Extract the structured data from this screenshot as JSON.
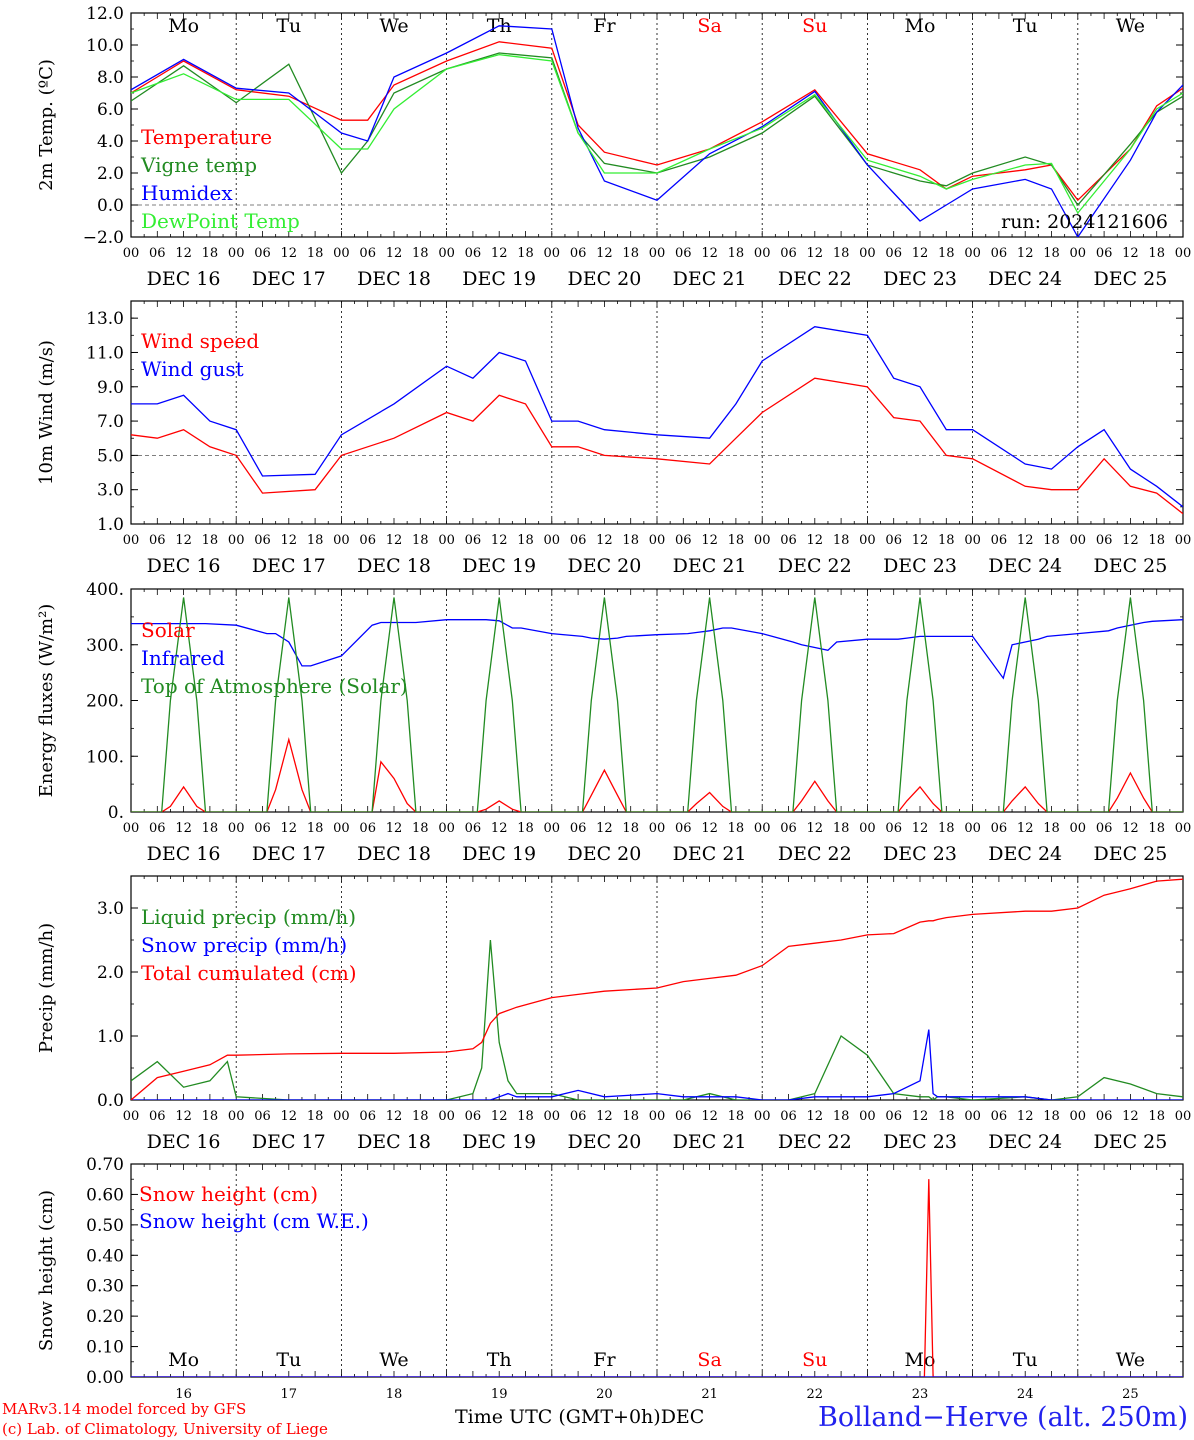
{
  "colors": {
    "red": "#ff0000",
    "green": "#228b22",
    "blue": "#0000ff",
    "lightgreen": "#33ee33",
    "black": "#000000"
  },
  "footer": {
    "model": "MARv3.14 model forced by GFS",
    "lab": "(c) Lab. of Climatology, University of Liege",
    "time_label": "Time UTC (GMT+0h)",
    "month": "DEC",
    "station": "Bolland−Herve (alt. 250m)"
  },
  "days": [
    {
      "dow": "Mo",
      "date": "DEC 16",
      "num": "16",
      "weekend": false
    },
    {
      "dow": "Tu",
      "date": "DEC 17",
      "num": "17",
      "weekend": false
    },
    {
      "dow": "We",
      "date": "DEC 18",
      "num": "18",
      "weekend": false
    },
    {
      "dow": "Th",
      "date": "DEC 19",
      "num": "19",
      "weekend": false
    },
    {
      "dow": "Fr",
      "date": "DEC 20",
      "num": "20",
      "weekend": false
    },
    {
      "dow": "Sa",
      "date": "DEC 21",
      "num": "21",
      "weekend": true
    },
    {
      "dow": "Su",
      "date": "DEC 22",
      "num": "22",
      "weekend": true
    },
    {
      "dow": "Mo",
      "date": "DEC 23",
      "num": "23",
      "weekend": false
    },
    {
      "dow": "Tu",
      "date": "DEC 24",
      "num": "24",
      "weekend": false
    },
    {
      "dow": "We",
      "date": "DEC 25",
      "num": "25",
      "weekend": false
    }
  ],
  "hour_ticks": [
    "00",
    "06",
    "12",
    "18"
  ],
  "chart_data": [
    {
      "type": "line",
      "id": "temp",
      "ylabel": "2m Temp. (ºC)",
      "ylim": [
        -2,
        12
      ],
      "yticks": [
        "−2.0",
        "0.0",
        "2.0",
        "4.0",
        "6.0",
        "8.0",
        "10.0",
        "12.0"
      ],
      "ytick_values": [
        -2,
        0,
        2,
        4,
        6,
        8,
        10,
        12
      ],
      "dashed_ref": 0,
      "annotation": "run: 2024121606",
      "x": [
        0,
        12,
        24,
        36,
        48,
        54,
        60,
        72,
        84,
        96,
        102,
        108,
        120,
        132,
        144,
        156,
        168,
        180,
        186,
        192,
        204,
        210,
        216,
        228,
        234,
        240
      ],
      "series": [
        {
          "name": "Temperature",
          "color": "red",
          "values": [
            7.0,
            9.0,
            7.2,
            6.8,
            5.3,
            5.3,
            7.5,
            9.0,
            10.2,
            9.8,
            5.0,
            3.3,
            2.5,
            3.5,
            5.2,
            7.2,
            3.2,
            2.2,
            1.0,
            1.8,
            2.2,
            2.5,
            0.3,
            3.5,
            6.2,
            7.3
          ]
        },
        {
          "name": "Vigne temp",
          "color": "green",
          "values": [
            6.5,
            8.7,
            6.4,
            8.8,
            2.0,
            4.0,
            7.0,
            8.5,
            9.5,
            9.2,
            4.5,
            2.6,
            2.0,
            3.0,
            4.5,
            6.8,
            2.5,
            1.5,
            1.2,
            2.0,
            3.0,
            2.5,
            0.0,
            3.8,
            5.8,
            6.8
          ]
        },
        {
          "name": "Humidex",
          "color": "blue",
          "values": [
            7.2,
            9.1,
            7.3,
            7.0,
            4.5,
            4.0,
            8.0,
            9.5,
            11.2,
            11.0,
            4.8,
            1.5,
            0.3,
            3.2,
            4.9,
            7.1,
            2.5,
            -1.0,
            0.0,
            1.0,
            1.6,
            1.0,
            -2.0,
            2.8,
            5.8,
            7.5
          ]
        },
        {
          "name": "DewPoint Temp",
          "color": "lightgreen",
          "values": [
            7.0,
            8.2,
            6.6,
            6.6,
            3.5,
            3.5,
            6.0,
            8.5,
            9.4,
            9.0,
            4.5,
            2.0,
            2.0,
            3.5,
            4.8,
            6.9,
            2.8,
            1.8,
            1.0,
            1.6,
            2.5,
            2.6,
            -0.5,
            3.5,
            6.0,
            7.0
          ]
        }
      ]
    },
    {
      "type": "line",
      "id": "wind",
      "ylabel": "10m Wind (m/s)",
      "ylim": [
        1,
        14
      ],
      "yticks": [
        "1.0",
        "3.0",
        "5.0",
        "7.0",
        "9.0",
        "11.0",
        "13.0"
      ],
      "ytick_values": [
        1,
        3,
        5,
        7,
        9,
        11,
        13
      ],
      "dashed_ref": 5,
      "x": [
        0,
        6,
        12,
        18,
        24,
        30,
        42,
        48,
        60,
        72,
        78,
        84,
        90,
        96,
        102,
        108,
        120,
        132,
        138,
        144,
        156,
        168,
        174,
        180,
        186,
        192,
        204,
        210,
        216,
        222,
        228,
        234,
        240
      ],
      "series": [
        {
          "name": "Wind speed",
          "color": "red",
          "values": [
            6.2,
            6.0,
            6.5,
            5.5,
            5.0,
            2.8,
            3.0,
            5.0,
            6.0,
            7.5,
            7.0,
            8.5,
            8.0,
            5.5,
            5.5,
            5.0,
            4.8,
            4.5,
            6.0,
            7.5,
            9.5,
            9.0,
            7.2,
            7.0,
            5.0,
            4.8,
            3.2,
            3.0,
            3.0,
            4.8,
            3.2,
            2.8,
            1.6
          ]
        },
        {
          "name": "Wind gust",
          "color": "blue",
          "values": [
            8.0,
            8.0,
            8.5,
            7.0,
            6.5,
            3.8,
            3.9,
            6.2,
            8.0,
            10.2,
            9.5,
            11.0,
            10.5,
            7.0,
            7.0,
            6.5,
            6.2,
            6.0,
            8.0,
            10.5,
            12.5,
            12.0,
            9.5,
            9.0,
            6.5,
            6.5,
            4.5,
            4.2,
            5.5,
            6.5,
            4.2,
            3.2,
            2.0
          ]
        }
      ]
    },
    {
      "type": "line",
      "id": "energy",
      "ylabel": "Energy fluxes (W/m²)",
      "ylim": [
        0,
        400
      ],
      "yticks": [
        "0.",
        "100.",
        "200.",
        "300.",
        "400."
      ],
      "ytick_values": [
        0,
        100,
        200,
        300,
        400
      ],
      "x": [
        0,
        7,
        9,
        12,
        15,
        17,
        24,
        31,
        33,
        36,
        39,
        41,
        48,
        55,
        57,
        60,
        63,
        65,
        72,
        79,
        81,
        84,
        87,
        89,
        96,
        103,
        105,
        108,
        111,
        113,
        120,
        127,
        129,
        132,
        135,
        137,
        144,
        151,
        153,
        156,
        159,
        161,
        168,
        175,
        177,
        180,
        183,
        185,
        192,
        199,
        201,
        204,
        207,
        209,
        216,
        223,
        225,
        228,
        231,
        233,
        240
      ],
      "series": [
        {
          "name": "Solar",
          "color": "red",
          "values": [
            0,
            0,
            10,
            45,
            10,
            0,
            0,
            0,
            40,
            130,
            40,
            0,
            0,
            0,
            90,
            60,
            15,
            0,
            0,
            0,
            5,
            20,
            5,
            0,
            0,
            0,
            30,
            75,
            30,
            0,
            0,
            0,
            15,
            35,
            10,
            0,
            0,
            0,
            20,
            55,
            20,
            0,
            0,
            0,
            20,
            45,
            15,
            0,
            0,
            0,
            20,
            45,
            15,
            0,
            0,
            0,
            25,
            70,
            25,
            0,
            0
          ]
        },
        {
          "name": "Infrared",
          "color": "blue",
          "values": [
            338,
            338,
            338,
            338,
            338,
            338,
            335,
            320,
            320,
            305,
            262,
            262,
            280,
            335,
            340,
            340,
            340,
            340,
            345,
            345,
            345,
            343,
            330,
            330,
            320,
            315,
            312,
            310,
            312,
            315,
            318,
            320,
            322,
            325,
            330,
            330,
            320,
            305,
            300,
            295,
            290,
            305,
            310,
            310,
            312,
            315,
            315,
            315,
            315,
            240,
            300,
            305,
            310,
            315,
            320,
            325,
            330,
            335,
            340,
            342,
            345
          ]
        },
        {
          "name": "Top of Atmosphere (Solar)",
          "color": "green",
          "values": [
            0,
            0,
            200,
            385,
            200,
            0,
            0,
            0,
            200,
            385,
            200,
            0,
            0,
            0,
            200,
            385,
            200,
            0,
            0,
            0,
            200,
            385,
            200,
            0,
            0,
            0,
            200,
            385,
            200,
            0,
            0,
            0,
            200,
            385,
            200,
            0,
            0,
            0,
            200,
            385,
            200,
            0,
            0,
            0,
            200,
            385,
            200,
            0,
            0,
            0,
            200,
            385,
            200,
            0,
            0,
            0,
            200,
            385,
            200,
            0,
            0
          ]
        }
      ]
    },
    {
      "type": "line",
      "id": "precip",
      "ylabel": "Precip (mm/h)",
      "ylim": [
        0,
        3.5
      ],
      "yticks": [
        "0.0",
        "1.0",
        "2.0",
        "3.0"
      ],
      "ytick_values": [
        0,
        1,
        2,
        3
      ],
      "x": [
        0,
        6,
        12,
        18,
        22,
        24,
        36,
        48,
        60,
        72,
        78,
        80,
        82,
        84,
        86,
        88,
        96,
        102,
        108,
        120,
        126,
        132,
        138,
        144,
        150,
        156,
        162,
        168,
        174,
        180,
        182,
        183,
        184,
        186,
        192,
        204,
        210,
        216,
        222,
        228,
        234,
        240
      ],
      "series": [
        {
          "name": "Liquid precip (mm/h)",
          "color": "green",
          "values": [
            0.3,
            0.6,
            0.2,
            0.3,
            0.6,
            0.05,
            0.0,
            0.0,
            0.0,
            0.0,
            0.1,
            0.5,
            2.5,
            0.9,
            0.3,
            0.1,
            0.1,
            0.0,
            0.0,
            0.0,
            0.0,
            0.1,
            0.0,
            0.0,
            0.0,
            0.1,
            1.0,
            0.7,
            0.1,
            0.05,
            0.05,
            0.0,
            0.05,
            0.05,
            0.0,
            0.05,
            0.0,
            0.05,
            0.35,
            0.25,
            0.1,
            0.05
          ]
        },
        {
          "name": "Snow precip (mm/h)",
          "color": "blue",
          "values": [
            0.0,
            0.0,
            0.0,
            0.0,
            0.0,
            0.0,
            0.0,
            0.0,
            0.0,
            0.0,
            0.0,
            0.0,
            0.0,
            0.05,
            0.1,
            0.05,
            0.05,
            0.15,
            0.05,
            0.1,
            0.05,
            0.05,
            0.05,
            0.0,
            0.0,
            0.05,
            0.05,
            0.05,
            0.1,
            0.3,
            1.1,
            0.1,
            0.05,
            0.05,
            0.05,
            0.05,
            0.0,
            0.0,
            0.0,
            0.0,
            0.0,
            0.0
          ]
        },
        {
          "name": "Total cumulated (cm)",
          "color": "red",
          "values": [
            0.0,
            0.35,
            0.45,
            0.55,
            0.7,
            0.7,
            0.72,
            0.73,
            0.73,
            0.75,
            0.8,
            0.9,
            1.2,
            1.35,
            1.4,
            1.45,
            1.6,
            1.65,
            1.7,
            1.75,
            1.85,
            1.9,
            1.95,
            2.1,
            2.4,
            2.45,
            2.5,
            2.58,
            2.6,
            2.78,
            2.8,
            2.8,
            2.82,
            2.85,
            2.9,
            2.95,
            2.95,
            3.0,
            3.2,
            3.3,
            3.42,
            3.45
          ]
        }
      ]
    },
    {
      "type": "line",
      "id": "snow",
      "ylabel": "Snow height (cm)",
      "ylim": [
        0,
        0.7
      ],
      "yticks": [
        "0.00",
        "0.10",
        "0.20",
        "0.30",
        "0.40",
        "0.50",
        "0.60",
        "0.70"
      ],
      "ytick_values": [
        0,
        0.1,
        0.2,
        0.3,
        0.4,
        0.5,
        0.6,
        0.7
      ],
      "x": [
        0,
        181,
        182,
        183,
        240
      ],
      "series": [
        {
          "name": "Snow height (cm)",
          "color": "red",
          "values": [
            0.0,
            0.0,
            0.65,
            0.0,
            0.0
          ]
        },
        {
          "name": "Snow height (cm W.E.)",
          "color": "blue",
          "values": [
            0.0,
            0.0,
            0.0,
            0.0,
            0.0
          ]
        }
      ]
    }
  ]
}
